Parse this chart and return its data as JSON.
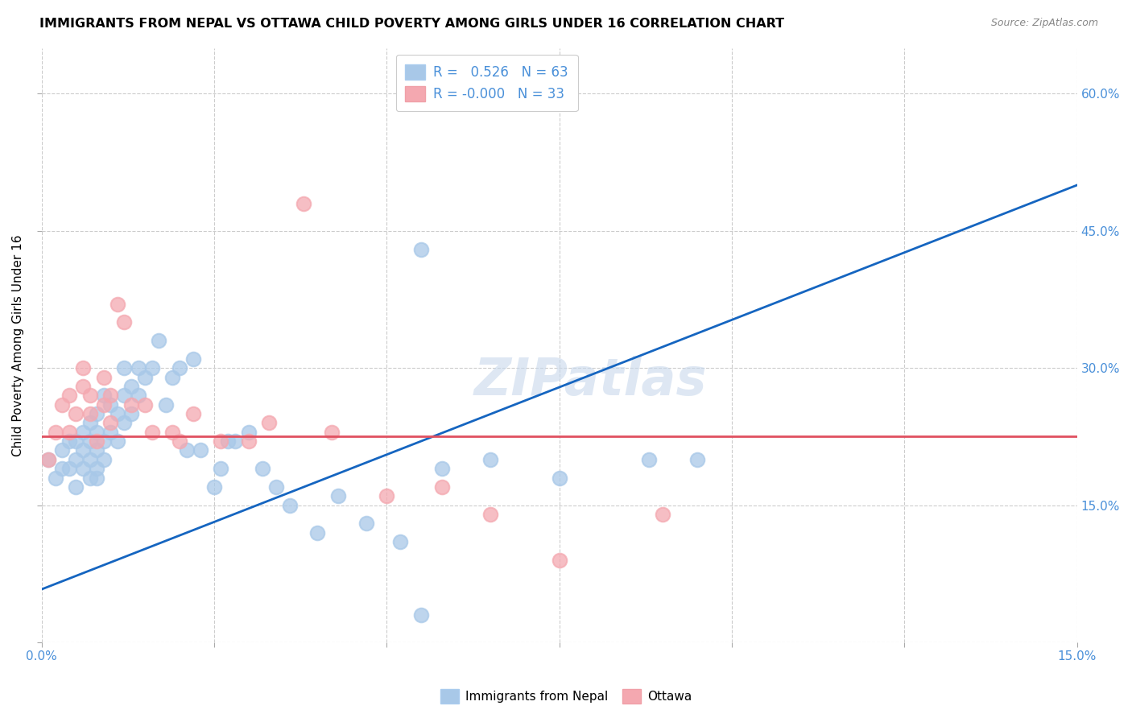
{
  "title": "IMMIGRANTS FROM NEPAL VS OTTAWA CHILD POVERTY AMONG GIRLS UNDER 16 CORRELATION CHART",
  "source": "Source: ZipAtlas.com",
  "ylabel": "Child Poverty Among Girls Under 16",
  "xlim": [
    0.0,
    0.15
  ],
  "ylim": [
    0.0,
    0.65
  ],
  "x_ticks": [
    0.0,
    0.025,
    0.05,
    0.075,
    0.1,
    0.125,
    0.15
  ],
  "x_tick_labels": [
    "0.0%",
    "",
    "",
    "",
    "",
    "",
    "15.0%"
  ],
  "y_ticks": [
    0.0,
    0.15,
    0.3,
    0.45,
    0.6
  ],
  "y_tick_labels_left": [
    "",
    "",
    "",
    "",
    ""
  ],
  "y_tick_labels_right": [
    "",
    "15.0%",
    "30.0%",
    "45.0%",
    "60.0%"
  ],
  "watermark": "ZIPatlas",
  "legend_r1": "R =   0.526   N = 63",
  "legend_r2": "R = -0.000   N = 33",
  "blue_color": "#a8c8e8",
  "pink_color": "#f4a8b0",
  "line_blue": "#1565c0",
  "line_pink": "#e05060",
  "tick_color": "#4a90d9",
  "grid_color": "#cccccc",
  "blue_scatter_x": [
    0.001,
    0.002,
    0.003,
    0.003,
    0.004,
    0.004,
    0.005,
    0.005,
    0.005,
    0.006,
    0.006,
    0.006,
    0.007,
    0.007,
    0.007,
    0.007,
    0.008,
    0.008,
    0.008,
    0.008,
    0.008,
    0.009,
    0.009,
    0.009,
    0.01,
    0.01,
    0.011,
    0.011,
    0.012,
    0.012,
    0.012,
    0.013,
    0.013,
    0.014,
    0.014,
    0.015,
    0.016,
    0.017,
    0.018,
    0.019,
    0.02,
    0.021,
    0.022,
    0.023,
    0.025,
    0.026,
    0.027,
    0.028,
    0.03,
    0.032,
    0.034,
    0.036,
    0.04,
    0.043,
    0.047,
    0.052,
    0.058,
    0.065,
    0.075,
    0.088,
    0.055,
    0.095,
    0.055
  ],
  "blue_scatter_y": [
    0.2,
    0.18,
    0.19,
    0.21,
    0.19,
    0.22,
    0.17,
    0.2,
    0.22,
    0.19,
    0.21,
    0.23,
    0.18,
    0.2,
    0.22,
    0.24,
    0.18,
    0.19,
    0.21,
    0.23,
    0.25,
    0.2,
    0.22,
    0.27,
    0.23,
    0.26,
    0.22,
    0.25,
    0.24,
    0.27,
    0.3,
    0.25,
    0.28,
    0.27,
    0.3,
    0.29,
    0.3,
    0.33,
    0.26,
    0.29,
    0.3,
    0.21,
    0.31,
    0.21,
    0.17,
    0.19,
    0.22,
    0.22,
    0.23,
    0.19,
    0.17,
    0.15,
    0.12,
    0.16,
    0.13,
    0.11,
    0.19,
    0.2,
    0.18,
    0.2,
    0.43,
    0.2,
    0.03
  ],
  "pink_scatter_x": [
    0.001,
    0.002,
    0.003,
    0.004,
    0.004,
    0.005,
    0.006,
    0.006,
    0.007,
    0.007,
    0.008,
    0.009,
    0.009,
    0.01,
    0.01,
    0.011,
    0.012,
    0.013,
    0.015,
    0.016,
    0.019,
    0.02,
    0.022,
    0.026,
    0.03,
    0.033,
    0.038,
    0.042,
    0.05,
    0.058,
    0.065,
    0.075,
    0.09
  ],
  "pink_scatter_y": [
    0.2,
    0.23,
    0.26,
    0.23,
    0.27,
    0.25,
    0.28,
    0.3,
    0.25,
    0.27,
    0.22,
    0.26,
    0.29,
    0.24,
    0.27,
    0.37,
    0.35,
    0.26,
    0.26,
    0.23,
    0.23,
    0.22,
    0.25,
    0.22,
    0.22,
    0.24,
    0.48,
    0.23,
    0.16,
    0.17,
    0.14,
    0.09,
    0.14
  ],
  "blue_line_x": [
    0.0,
    0.15
  ],
  "blue_line_y": [
    0.058,
    0.5
  ],
  "pink_line_x": [
    0.0,
    0.15
  ],
  "pink_line_y": [
    0.225,
    0.225
  ]
}
